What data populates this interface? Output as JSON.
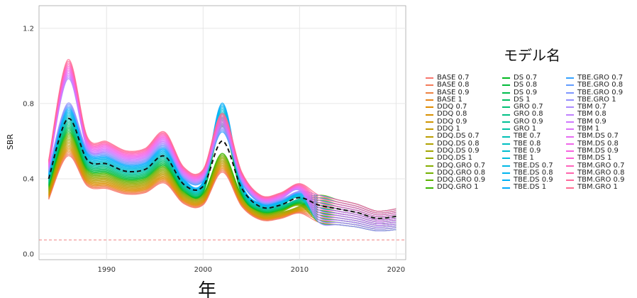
{
  "chart_data": {
    "type": "line",
    "title": "",
    "xlabel": "年",
    "ylabel": "SBR",
    "xlim": [
      1983,
      2021
    ],
    "ylim": [
      -0.03,
      1.32
    ],
    "x_ticks": [
      1990,
      2000,
      2010,
      2020
    ],
    "y_ticks": [
      0.0,
      0.4,
      0.8,
      1.2
    ],
    "x_tick_labels": [
      "1990",
      "2000",
      "2010",
      "2020"
    ],
    "y_tick_labels": [
      "0.0",
      "0.4",
      "0.8",
      "1.2"
    ],
    "grid": true,
    "legend_title": "モデル名",
    "legend_placement": "right",
    "reference_line": {
      "y": 0.075,
      "style": "dashed",
      "color": "#f08080"
    },
    "years": [
      1984,
      1986,
      1988,
      1990,
      1992,
      1994,
      1996,
      1998,
      2000,
      2002,
      2004,
      2006,
      2008,
      2010,
      2012,
      2014,
      2016,
      2018,
      2020
    ],
    "mean_series": {
      "style": "dashed",
      "color": "#111111",
      "values": [
        0.4,
        0.72,
        0.5,
        0.48,
        0.44,
        0.45,
        0.52,
        0.37,
        0.36,
        0.6,
        0.35,
        0.25,
        0.26,
        0.3,
        0.26,
        0.24,
        0.22,
        0.19,
        0.2
      ]
    },
    "series": [
      {
        "name": "BASE 0.7",
        "color": "#f8766d"
      },
      {
        "name": "BASE 0.8",
        "color": "#f37b59"
      },
      {
        "name": "BASE 0.9",
        "color": "#ed8141"
      },
      {
        "name": "BASE 1",
        "color": "#e7861b"
      },
      {
        "name": "DDQ 0.7",
        "color": "#e08b00"
      },
      {
        "name": "DDQ 0.8",
        "color": "#d89000"
      },
      {
        "name": "DDQ 0.9",
        "color": "#cf9400"
      },
      {
        "name": "DDQ 1",
        "color": "#c59900"
      },
      {
        "name": "DDQ.DS 0.7",
        "color": "#bb9d00"
      },
      {
        "name": "DDQ.DS 0.8",
        "color": "#b0a100"
      },
      {
        "name": "DDQ.DS 0.9",
        "color": "#a3a500"
      },
      {
        "name": "DDQ.DS 1",
        "color": "#95a900"
      },
      {
        "name": "DDQ.GRO 0.7",
        "color": "#85ad00"
      },
      {
        "name": "DDQ.GRO 0.8",
        "color": "#72b000"
      },
      {
        "name": "DDQ.GRO 0.9",
        "color": "#5bb300"
      },
      {
        "name": "DDQ.GRO 1",
        "color": "#39b600"
      },
      {
        "name": "DS 0.7",
        "color": "#00b81f"
      },
      {
        "name": "DS 0.8",
        "color": "#00ba38"
      },
      {
        "name": "DS 0.9",
        "color": "#00bc4e"
      },
      {
        "name": "DS 1",
        "color": "#00be62"
      },
      {
        "name": "GRO 0.7",
        "color": "#00bf74"
      },
      {
        "name": "GRO 0.8",
        "color": "#00c085"
      },
      {
        "name": "GRO 0.9",
        "color": "#00c096"
      },
      {
        "name": "GRO 1",
        "color": "#00c1a5"
      },
      {
        "name": "TBE 0.7",
        "color": "#00c0b4"
      },
      {
        "name": "TBE 0.8",
        "color": "#00bfc2"
      },
      {
        "name": "TBE 0.9",
        "color": "#00bdcf"
      },
      {
        "name": "TBE 1",
        "color": "#00bbdb"
      },
      {
        "name": "TBE.DS 0.7",
        "color": "#00b8e5"
      },
      {
        "name": "TBE.DS 0.8",
        "color": "#00b4ef"
      },
      {
        "name": "TBE.DS 0.9",
        "color": "#00b0f6"
      },
      {
        "name": "TBE.DS 1",
        "color": "#00abfd"
      },
      {
        "name": "TBE.GRO 0.7",
        "color": "#35a2ff"
      },
      {
        "name": "TBE.GRO 0.8",
        "color": "#619cff"
      },
      {
        "name": "TBE.GRO 0.9",
        "color": "#7d96ff"
      },
      {
        "name": "TBE.GRO 1",
        "color": "#9590ff"
      },
      {
        "name": "TBM 0.7",
        "color": "#ab8aff"
      },
      {
        "name": "TBM 0.8",
        "color": "#bf80ff"
      },
      {
        "name": "TBM 0.9",
        "color": "#cf78ff"
      },
      {
        "name": "TBM 1",
        "color": "#dc71fa"
      },
      {
        "name": "TBM.DS 0.7",
        "color": "#e76bf3"
      },
      {
        "name": "TBM.DS 0.8",
        "color": "#f066ea"
      },
      {
        "name": "TBM.DS 0.9",
        "color": "#f763e0"
      },
      {
        "name": "TBM.DS 1",
        "color": "#fc61d5"
      },
      {
        "name": "TBM.GRO 0.7",
        "color": "#ff62bc"
      },
      {
        "name": "TBM.GRO 0.8",
        "color": "#ff65ad"
      },
      {
        "name": "TBM.GRO 0.9",
        "color": "#ff699c"
      },
      {
        "name": "TBM.GRO 1",
        "color": "#ff6c91"
      }
    ]
  }
}
